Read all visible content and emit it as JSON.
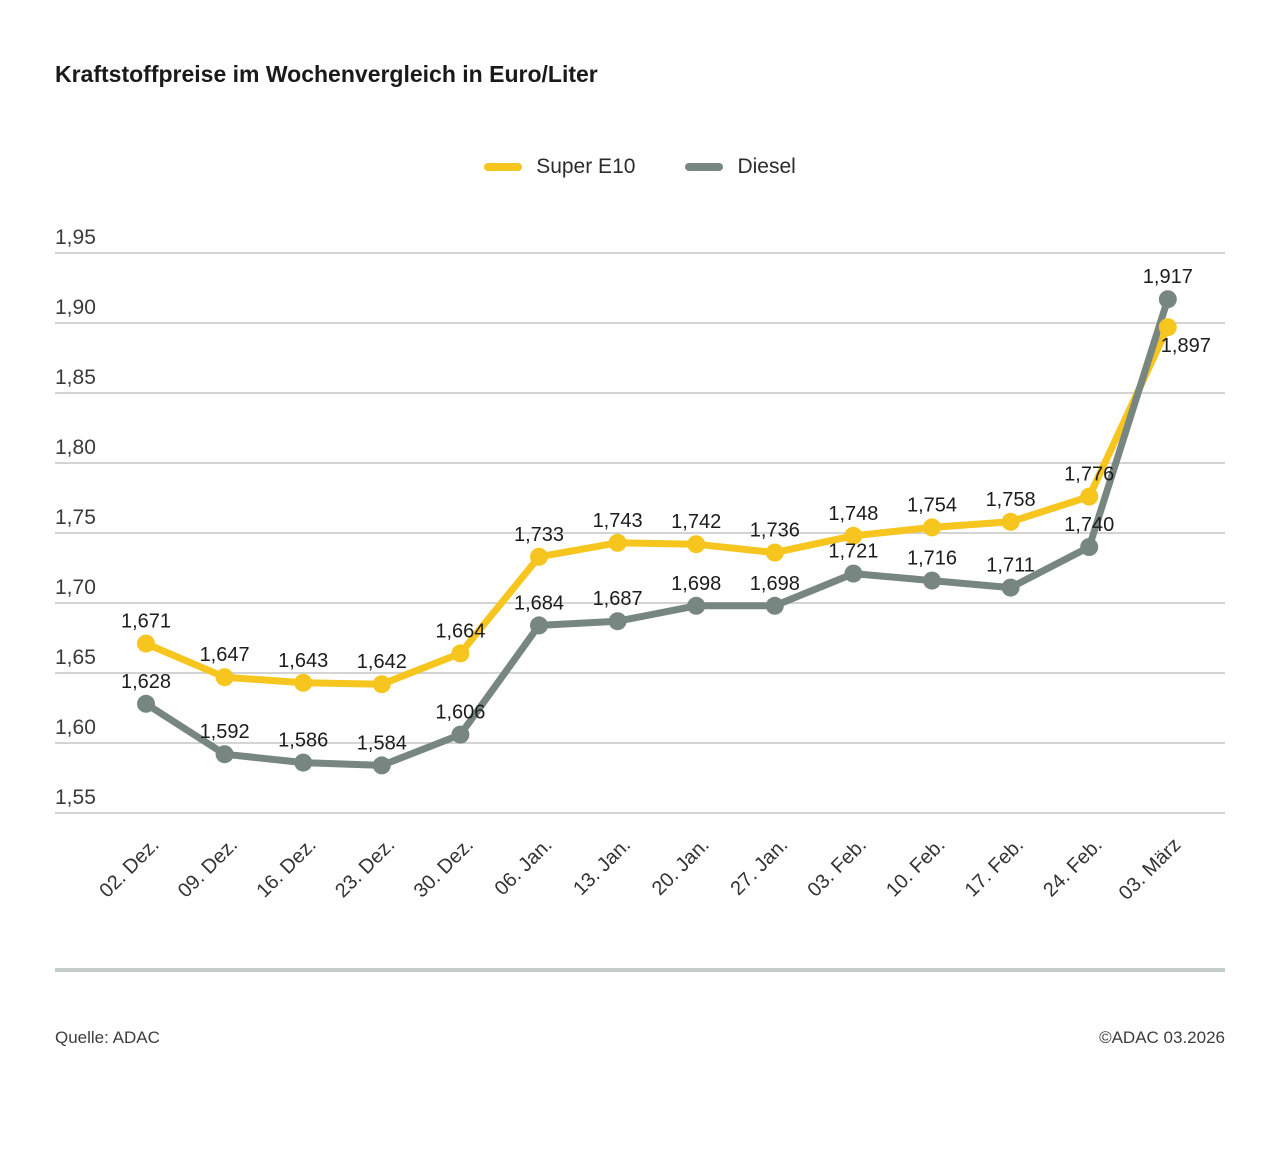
{
  "title": "Kraftstoffpreise im Wochenvergleich in Euro/Liter",
  "footer": {
    "source": "Quelle: ADAC",
    "copyright": "©ADAC 03.2026"
  },
  "chart_data": {
    "type": "line",
    "title": "Kraftstoffpreise im Wochenvergleich in Euro/Liter",
    "unit": "Euro/Liter",
    "categories": [
      "02. Dez.",
      "09. Dez.",
      "16. Dez.",
      "23. Dez.",
      "30. Dez.",
      "06. Jan.",
      "13. Jan.",
      "20. Jan.",
      "27. Jan.",
      "03. Feb.",
      "10. Feb.",
      "17. Feb.",
      "24. Feb.",
      "03. März"
    ],
    "series": [
      {
        "name": "Super E10",
        "color": "#F6C51E",
        "values": [
          1.671,
          1.647,
          1.643,
          1.642,
          1.664,
          1.733,
          1.743,
          1.742,
          1.736,
          1.748,
          1.754,
          1.758,
          1.776,
          1.897
        ]
      },
      {
        "name": "Diesel",
        "color": "#788682",
        "values": [
          1.628,
          1.592,
          1.586,
          1.584,
          1.606,
          1.684,
          1.687,
          1.698,
          1.698,
          1.721,
          1.716,
          1.711,
          1.74,
          1.917
        ]
      }
    ],
    "ylim": [
      1.55,
      1.95
    ],
    "ytick_step": 0.05,
    "ytick_labels": [
      "1,55",
      "1,60",
      "1,65",
      "1,70",
      "1,75",
      "1,80",
      "1,85",
      "1,90",
      "1,95"
    ],
    "decimal_separator": ",",
    "value_decimals": 3,
    "grid": true,
    "legend_position": "top-center",
    "data_labels": true,
    "label_overrides": [
      {
        "series": 0,
        "index": 13,
        "position": "below"
      }
    ]
  }
}
